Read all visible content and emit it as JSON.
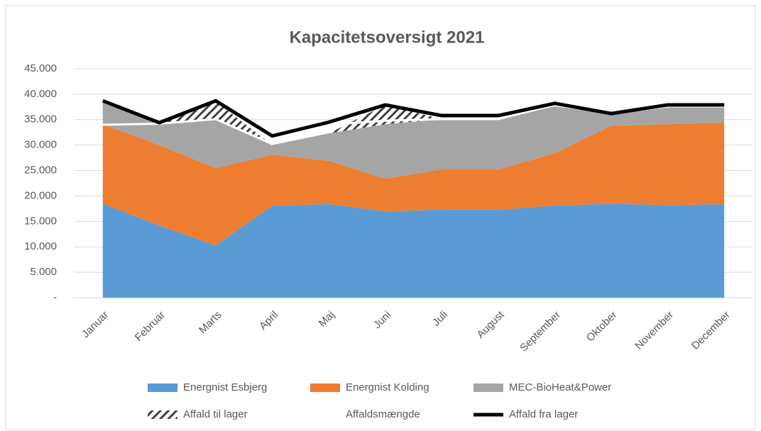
{
  "chart_data": {
    "type": "stacked_area",
    "title": "Kapacitetsoversigt 2021",
    "categories": [
      "Januar",
      "Februar",
      "Marts",
      "April",
      "Maj",
      "Juni",
      "Juli",
      "August",
      "September",
      "Oktober",
      "November",
      "December"
    ],
    "series": [
      {
        "name": "Energnist Esbjerg",
        "color": "#5b9bd5",
        "kind": "area",
        "values": [
          18500,
          14200,
          10300,
          18100,
          18400,
          17000,
          17300,
          17300,
          18100,
          18500,
          18200,
          18400
        ]
      },
      {
        "name": "Energnist Kolding",
        "color": "#ed7d31",
        "kind": "area",
        "values": [
          15600,
          15800,
          15200,
          10000,
          8500,
          6400,
          7900,
          7900,
          10300,
          15300,
          15900,
          16000
        ]
      },
      {
        "name": "MEC-BioHeat&Power",
        "color": "#a5a5a5",
        "kind": "area",
        "values": [
          4200,
          4300,
          9600,
          1900,
          5400,
          10700,
          9900,
          9900,
          9200,
          2400,
          3500,
          3200
        ]
      },
      {
        "name": "Affald til lager",
        "color": "#404040",
        "kind": "hatch",
        "values": [
          0,
          0,
          3500,
          0,
          0,
          3800,
          0,
          0,
          0,
          0,
          0,
          0
        ]
      },
      {
        "name": "Affaldsmængde",
        "color": "#ffffff",
        "kind": "line",
        "values": [
          34000,
          34200,
          35100,
          30200,
          34000,
          34800,
          35100,
          35100,
          37900,
          36200,
          37600,
          37600
        ]
      },
      {
        "name": "Affald fra lager",
        "color": "#000000",
        "kind": "line",
        "values": [
          38700,
          34400,
          38700,
          31800,
          34500,
          37900,
          35800,
          35800,
          38200,
          36200,
          37900,
          37900
        ]
      }
    ],
    "ylim": [
      0,
      45000
    ],
    "yticks": [
      {
        "value": 0,
        "label": "-"
      },
      {
        "value": 5000,
        "label": "5.000"
      },
      {
        "value": 10000,
        "label": "10.000"
      },
      {
        "value": 15000,
        "label": "15.000"
      },
      {
        "value": 20000,
        "label": "20.000"
      },
      {
        "value": 25000,
        "label": "25.000"
      },
      {
        "value": 30000,
        "label": "30.000"
      },
      {
        "value": 35000,
        "label": "35.000"
      },
      {
        "value": 40000,
        "label": "40.000"
      },
      {
        "value": 45000,
        "label": "45.000"
      }
    ],
    "grid": true,
    "legend": "bottom"
  }
}
